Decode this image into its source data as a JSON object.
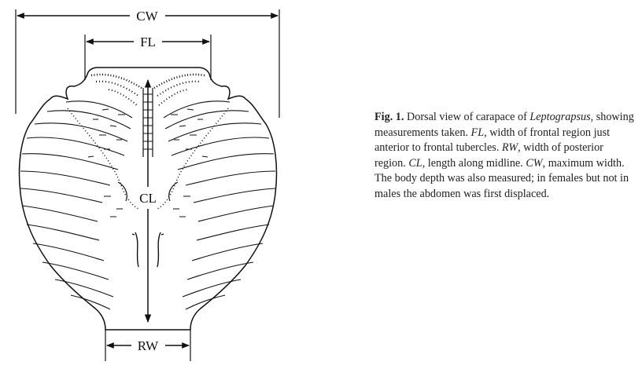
{
  "diagram": {
    "labels": {
      "cw": "CW",
      "fl": "FL",
      "cl": "CL",
      "rw": "RW"
    }
  },
  "caption": {
    "figure_number": "Fig. 1.",
    "s1": "Dorsal view of carapace of",
    "genus": "Leptograpsus",
    "s2": ", showing measurements taken.",
    "fl_abbr": "FL",
    "fl_def": ", width of frontal region just anterior to frontal tubercles.",
    "rw_abbr": "RW",
    "rw_def": ", width of posterior region.",
    "cl_abbr": "CL",
    "cl_def": ", length along midline.",
    "cw_abbr": "CW",
    "cw_def": ", maximum width. The body depth was also measured; in females but not in males the abdomen was first displaced."
  },
  "colors": {
    "ink": "#111111",
    "background": "#ffffff"
  }
}
